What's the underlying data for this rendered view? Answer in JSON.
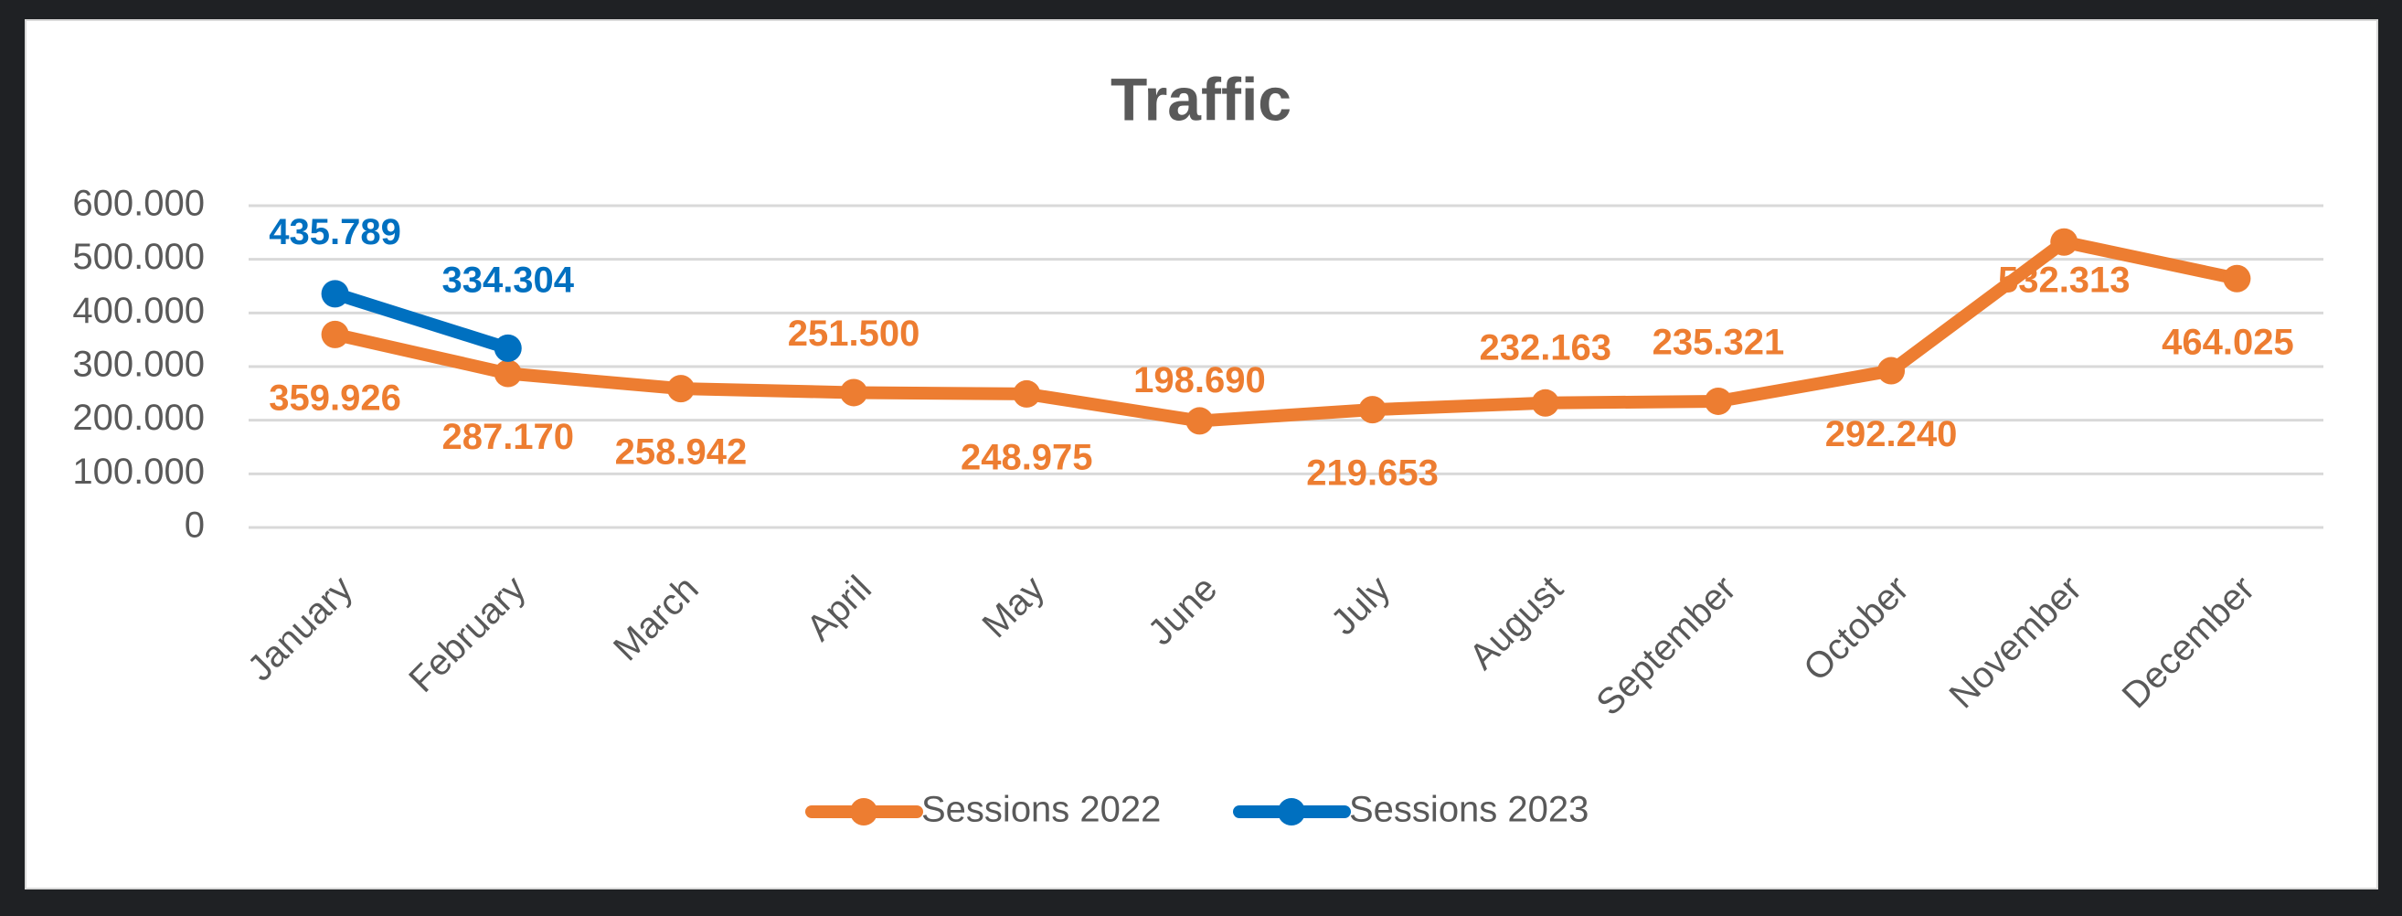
{
  "chart_data": {
    "type": "line",
    "title": "Traffic",
    "categories": [
      "January",
      "February",
      "March",
      "April",
      "May",
      "June",
      "July",
      "August",
      "September",
      "October",
      "November",
      "December"
    ],
    "series": [
      {
        "name": "Sessions 2022",
        "color": "#ED7D31",
        "values": [
          359926,
          287170,
          258942,
          251500,
          248975,
          198690,
          219653,
          232163,
          235321,
          292240,
          532313,
          464025
        ],
        "value_labels": [
          "359.926",
          "287.170",
          "258.942",
          "251.500",
          "248.975",
          "198.690",
          "219.653",
          "232.163",
          "235.321",
          "292.240",
          "532.313",
          "464.025"
        ]
      },
      {
        "name": "Sessions 2023",
        "color": "#0070C0",
        "values": [
          435789,
          334304,
          null,
          null,
          null,
          null,
          null,
          null,
          null,
          null,
          null,
          null
        ],
        "value_labels": [
          "435.789",
          "334.304",
          null,
          null,
          null,
          null,
          null,
          null,
          null,
          null,
          null,
          null
        ]
      }
    ],
    "ylim": [
      0,
      600000
    ],
    "yticks": [
      0,
      {
        "value": 100000,
        "label": "100.000"
      },
      {
        "value": 200000,
        "label": "200.000"
      },
      {
        "value": 300000,
        "label": "300.000"
      },
      {
        "value": 400000,
        "label": "400.000"
      },
      {
        "value": 500000,
        "label": "500.000"
      },
      {
        "value": 600000,
        "label": "600.000"
      }
    ],
    "grid": true,
    "legend": "bottom"
  }
}
